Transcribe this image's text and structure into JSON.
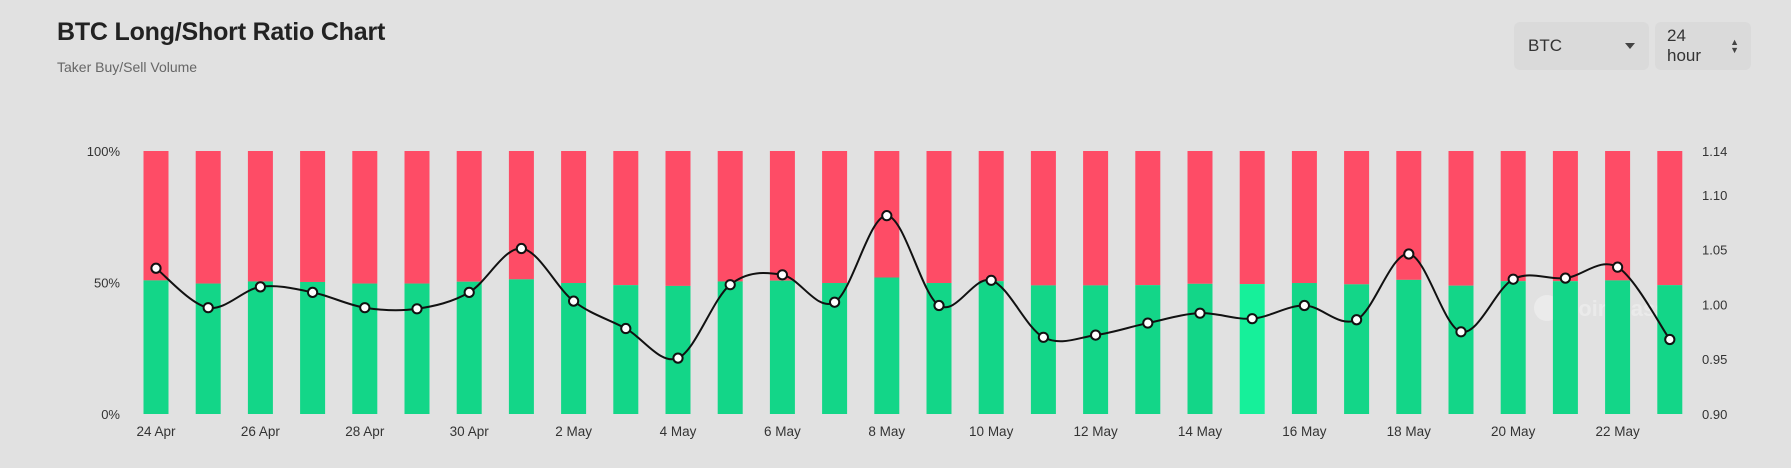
{
  "header": {
    "title": "BTC Long/Short Ratio Chart",
    "subtitle": "Taker Buy/Sell Volume"
  },
  "controls": {
    "coin": "BTC",
    "interval": "24 hour"
  },
  "watermark": "coinglass",
  "colors": {
    "long": "#13d688",
    "long_highlight": "#16f09a",
    "short": "#fe4c66",
    "line": "#111111",
    "background": "#e1e1e1"
  },
  "chart_data": {
    "type": "bar",
    "title": "BTC Long/Short Ratio Chart",
    "subtitle": "Taker Buy/Sell Volume",
    "categories": [
      "24 Apr",
      "25 Apr",
      "26 Apr",
      "27 Apr",
      "28 Apr",
      "29 Apr",
      "30 Apr",
      "1 May",
      "2 May",
      "3 May",
      "4 May",
      "5 May",
      "6 May",
      "7 May",
      "8 May",
      "9 May",
      "10 May",
      "11 May",
      "12 May",
      "13 May",
      "14 May",
      "15 May",
      "16 May",
      "17 May",
      "18 May",
      "19 May",
      "20 May",
      "21 May",
      "22 May",
      "23 May"
    ],
    "x_tick_labels": [
      "24 Apr",
      "26 Apr",
      "28 Apr",
      "30 Apr",
      "2 May",
      "4 May",
      "6 May",
      "8 May",
      "10 May",
      "12 May",
      "14 May",
      "16 May",
      "18 May",
      "20 May",
      "22 May"
    ],
    "series": [
      {
        "name": "Long",
        "axis": "left",
        "unit": "%",
        "values": [
          50.8,
          49.6,
          50.4,
          50.2,
          49.6,
          49.6,
          50.3,
          51.2,
          49.8,
          49.0,
          48.7,
          50.4,
          50.7,
          49.8,
          51.9,
          49.8,
          50.5,
          48.9,
          48.9,
          49.0,
          49.5,
          49.4,
          49.8,
          49.3,
          51.0,
          48.8,
          50.5,
          50.5,
          50.8,
          49.0
        ]
      },
      {
        "name": "Short",
        "axis": "left",
        "unit": "%",
        "values": [
          49.2,
          50.4,
          49.6,
          49.8,
          50.4,
          50.4,
          49.7,
          48.8,
          50.2,
          51.0,
          51.3,
          49.6,
          49.3,
          50.2,
          48.1,
          50.2,
          49.5,
          51.1,
          51.1,
          51.0,
          50.5,
          50.6,
          50.2,
          50.7,
          49.0,
          51.2,
          49.5,
          49.5,
          49.2,
          51.0
        ]
      },
      {
        "name": "Long/Short Ratio",
        "axis": "right",
        "type": "line",
        "values": [
          1.033,
          0.997,
          1.016,
          1.011,
          0.997,
          0.996,
          1.011,
          1.051,
          1.003,
          0.978,
          0.951,
          1.018,
          1.027,
          1.002,
          1.081,
          0.999,
          1.022,
          0.97,
          0.972,
          0.983,
          0.992,
          0.987,
          0.999,
          0.986,
          1.046,
          0.975,
          1.023,
          1.024,
          1.034,
          0.968
        ]
      }
    ],
    "highlight_index": 21,
    "y_left": {
      "ticks": [
        "0%",
        "50%",
        "100%"
      ],
      "range": [
        0,
        100
      ]
    },
    "y_right": {
      "ticks": [
        "0.90",
        "0.95",
        "1.00",
        "1.05",
        "1.10",
        "1.14"
      ],
      "range": [
        0.9,
        1.14
      ]
    },
    "grid": false,
    "legend": "none"
  }
}
